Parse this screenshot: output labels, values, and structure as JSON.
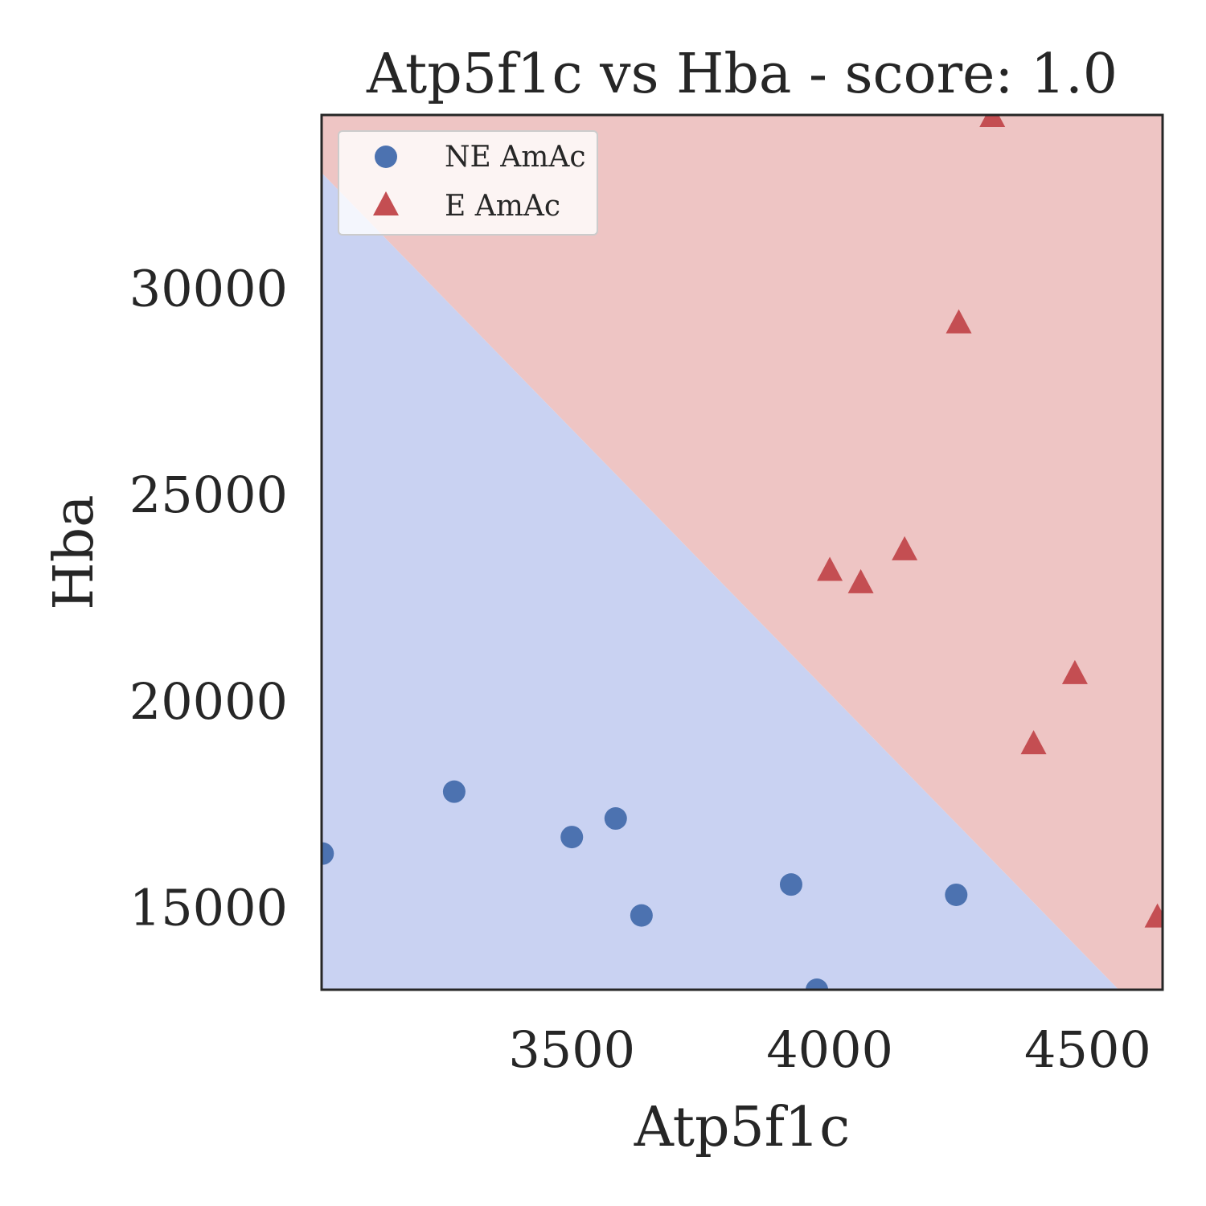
{
  "chart_data": {
    "type": "scatter",
    "title": "Atp5f1c vs Hba - score: 1.0",
    "xlabel": "Atp5f1c",
    "ylabel": "Hba",
    "xlim": [
      3015,
      4645
    ],
    "ylim": [
      13000,
      34200
    ],
    "xticks": [
      3500,
      4000,
      4500
    ],
    "yticks": [
      15000,
      20000,
      25000,
      30000
    ],
    "grid": false,
    "legend_position": "top-left",
    "decision_boundary": {
      "points": [
        [
          3015,
          32800
        ],
        [
          4560,
          13000
        ]
      ],
      "region_below_color": "#c9d2f2",
      "region_above_color": "#eec5c4"
    },
    "series": [
      {
        "name": "NE AmAc",
        "marker": "circle",
        "color": "#4c72b0",
        "points": [
          [
            3017,
            16300
          ],
          [
            3272,
            17800
          ],
          [
            3500,
            16700
          ],
          [
            3585,
            17150
          ],
          [
            3635,
            14800
          ],
          [
            3925,
            15550
          ],
          [
            3975,
            13000
          ],
          [
            4245,
            15300
          ]
        ]
      },
      {
        "name": "E AmAc",
        "marker": "triangle",
        "color": "#c44e52",
        "points": [
          [
            4315,
            34200
          ],
          [
            4250,
            29200
          ],
          [
            4145,
            23700
          ],
          [
            4000,
            23200
          ],
          [
            4060,
            22900
          ],
          [
            4475,
            20700
          ],
          [
            4395,
            19000
          ],
          [
            4635,
            14800
          ]
        ]
      }
    ]
  }
}
